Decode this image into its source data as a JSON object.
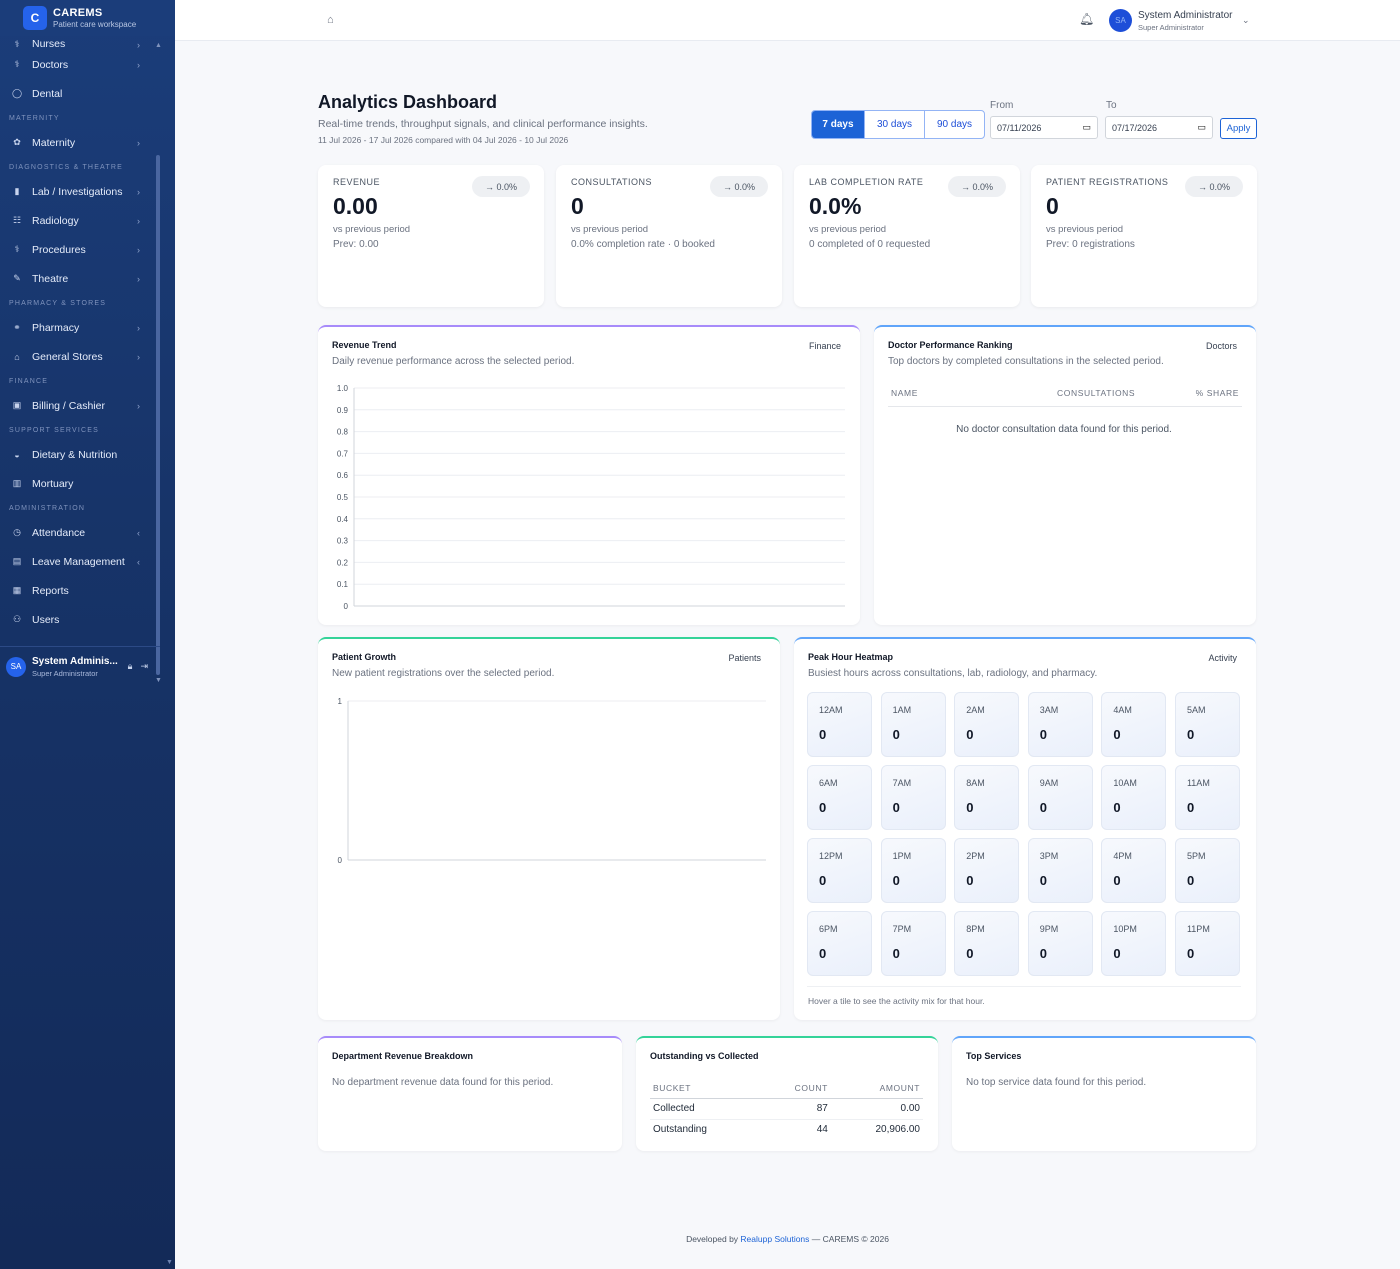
{
  "app": {
    "name": "CAREMS",
    "tagline": "Patient care workspace",
    "logo_letter": "C"
  },
  "sidebar": {
    "items": [
      {
        "id": "nurses",
        "label": "Nurses",
        "icon": "users-icon",
        "glyph": "⚕",
        "chev": "›"
      },
      {
        "id": "doctors",
        "label": "Doctors",
        "icon": "stethoscope-icon",
        "glyph": "⚕",
        "chev": "›"
      },
      {
        "id": "dental",
        "label": "Dental",
        "icon": "tooth-icon",
        "glyph": "◯",
        "chev": ""
      },
      {
        "section": "MATERNITY"
      },
      {
        "id": "maternity",
        "label": "Maternity",
        "icon": "baby-icon",
        "glyph": "✿",
        "chev": "›"
      },
      {
        "section": "DIAGNOSTICS & THEATRE"
      },
      {
        "id": "lab",
        "label": "Lab / Investigations",
        "icon": "flask-icon",
        "glyph": "▮",
        "chev": "›"
      },
      {
        "id": "radiology",
        "label": "Radiology",
        "icon": "xray-icon",
        "glyph": "☷",
        "chev": "›"
      },
      {
        "id": "procedures",
        "label": "Procedures",
        "icon": "procedure-icon",
        "glyph": "⚕",
        "chev": "›"
      },
      {
        "id": "theatre",
        "label": "Theatre",
        "icon": "scalpel-icon",
        "glyph": "✎",
        "chev": "›"
      },
      {
        "section": "PHARMACY & STORES"
      },
      {
        "id": "pharmacy",
        "label": "Pharmacy",
        "icon": "pill-icon",
        "glyph": "⚭",
        "chev": "›"
      },
      {
        "id": "stores",
        "label": "General Stores",
        "icon": "warehouse-icon",
        "glyph": "⌂",
        "chev": "›"
      },
      {
        "section": "FINANCE"
      },
      {
        "id": "billing",
        "label": "Billing / Cashier",
        "icon": "cash-icon",
        "glyph": "▣",
        "chev": "›"
      },
      {
        "section": "SUPPORT SERVICES"
      },
      {
        "id": "dietary",
        "label": "Dietary & Nutrition",
        "icon": "bowl-icon",
        "glyph": "◒",
        "chev": ""
      },
      {
        "id": "mortuary",
        "label": "Mortuary",
        "icon": "building-icon",
        "glyph": "▥",
        "chev": ""
      },
      {
        "section": "ADMINISTRATION"
      },
      {
        "id": "attendance",
        "label": "Attendance",
        "icon": "clock-icon",
        "glyph": "◷",
        "chev": "‹"
      },
      {
        "id": "leave",
        "label": "Leave Management",
        "icon": "calendar-icon",
        "glyph": "▤",
        "chev": "‹"
      },
      {
        "id": "reports",
        "label": "Reports",
        "icon": "report-icon",
        "glyph": "▦",
        "chev": ""
      },
      {
        "id": "users",
        "label": "Users",
        "icon": "users-group-icon",
        "glyph": "⚇",
        "chev": ""
      }
    ],
    "user": {
      "initials": "SA",
      "name": "System Adminis...",
      "role": "Super Administrator"
    }
  },
  "topbar": {
    "user_initials": "SA",
    "user_name": "System Administrator",
    "user_role": "Super Administrator"
  },
  "header": {
    "title": "Analytics Dashboard",
    "subtitle": "Real-time trends, throughput signals, and clinical performance insights.",
    "range": "11 Jul 2026 - 17 Jul 2026 compared with 04 Jul 2026 - 10 Jul 2026",
    "periods": [
      {
        "label": "7 days",
        "active": true
      },
      {
        "label": "30 days",
        "active": false
      },
      {
        "label": "90 days",
        "active": false
      }
    ],
    "from_label": "From",
    "to_label": "To",
    "from_value": "07/11/2026",
    "to_value": "07/17/2026",
    "apply_label": "Apply"
  },
  "kpis": [
    {
      "label": "REVENUE",
      "delta": "→ 0.0%",
      "value": "0.00",
      "vs": "vs previous period",
      "prev": "Prev: 0.00"
    },
    {
      "label": "CONSULTATIONS",
      "delta": "→ 0.0%",
      "value": "0",
      "vs": "vs previous period",
      "prev": "0.0% completion rate · 0 booked"
    },
    {
      "label": "LAB COMPLETION RATE",
      "delta": "→ 0.0%",
      "value": "0.0%",
      "vs": "vs previous period",
      "prev": "0 completed of 0 requested"
    },
    {
      "label": "PATIENT REGISTRATIONS",
      "delta": "→ 0.0%",
      "value": "0",
      "vs": "vs previous period",
      "prev": "Prev: 0 registrations"
    }
  ],
  "revenue_trend": {
    "title": "Revenue Trend",
    "tag": "Finance",
    "subtitle": "Daily revenue performance across the selected period."
  },
  "doctor_ranking": {
    "title": "Doctor Performance Ranking",
    "tag": "Doctors",
    "subtitle": "Top doctors by completed consultations in the selected period.",
    "columns": [
      "NAME",
      "CONSULTATIONS",
      "% SHARE"
    ],
    "empty": "No doctor consultation data found for this period."
  },
  "patient_growth": {
    "title": "Patient Growth",
    "tag": "Patients",
    "subtitle": "New patient registrations over the selected period."
  },
  "heatmap": {
    "title": "Peak Hour Heatmap",
    "tag": "Activity",
    "subtitle": "Busiest hours across consultations, lab, radiology, and pharmacy.",
    "tiles": [
      {
        "hour": "12AM",
        "value": "0"
      },
      {
        "hour": "1AM",
        "value": "0"
      },
      {
        "hour": "2AM",
        "value": "0"
      },
      {
        "hour": "3AM",
        "value": "0"
      },
      {
        "hour": "4AM",
        "value": "0"
      },
      {
        "hour": "5AM",
        "value": "0"
      },
      {
        "hour": "6AM",
        "value": "0"
      },
      {
        "hour": "7AM",
        "value": "0"
      },
      {
        "hour": "8AM",
        "value": "0"
      },
      {
        "hour": "9AM",
        "value": "0"
      },
      {
        "hour": "10AM",
        "value": "0"
      },
      {
        "hour": "11AM",
        "value": "0"
      },
      {
        "hour": "12PM",
        "value": "0"
      },
      {
        "hour": "1PM",
        "value": "0"
      },
      {
        "hour": "2PM",
        "value": "0"
      },
      {
        "hour": "3PM",
        "value": "0"
      },
      {
        "hour": "4PM",
        "value": "0"
      },
      {
        "hour": "5PM",
        "value": "0"
      },
      {
        "hour": "6PM",
        "value": "0"
      },
      {
        "hour": "7PM",
        "value": "0"
      },
      {
        "hour": "8PM",
        "value": "0"
      },
      {
        "hour": "9PM",
        "value": "0"
      },
      {
        "hour": "10PM",
        "value": "0"
      },
      {
        "hour": "11PM",
        "value": "0"
      }
    ],
    "note": "Hover a tile to see the activity mix for that hour."
  },
  "dept_revenue": {
    "title": "Department Revenue Breakdown",
    "empty": "No department revenue data found for this period."
  },
  "outstanding": {
    "title": "Outstanding vs Collected",
    "columns": [
      "BUCKET",
      "COUNT",
      "AMOUNT"
    ],
    "rows": [
      {
        "bucket": "Collected",
        "count": "87",
        "amount": "0.00"
      },
      {
        "bucket": "Outstanding",
        "count": "44",
        "amount": "20,906.00"
      }
    ]
  },
  "top_services": {
    "title": "Top Services",
    "empty": "No top service data found for this period."
  },
  "footer": {
    "prefix": "Developed by",
    "company": "Realupp Solutions",
    "suffix": "— CAREMS © 2026"
  },
  "chart_data": [
    {
      "type": "line",
      "title": "Revenue Trend",
      "x": [],
      "values": [],
      "ylim": [
        0,
        1.0
      ],
      "yticks": [
        "1.0",
        "0.9",
        "0.8",
        "0.7",
        "0.6",
        "0.5",
        "0.4",
        "0.3",
        "0.2",
        "0.1",
        "0"
      ],
      "grid": true
    },
    {
      "type": "line",
      "title": "Patient Growth",
      "x": [],
      "values": [],
      "ylim": [
        0,
        1
      ],
      "yticks": [
        "1",
        "0"
      ],
      "grid": true
    }
  ],
  "colors": {
    "sidebar": "#173469",
    "accent": "#1d63d6",
    "violet_top": "#a78bfa",
    "blue_top": "#60a5fa",
    "green_top": "#34d399"
  }
}
